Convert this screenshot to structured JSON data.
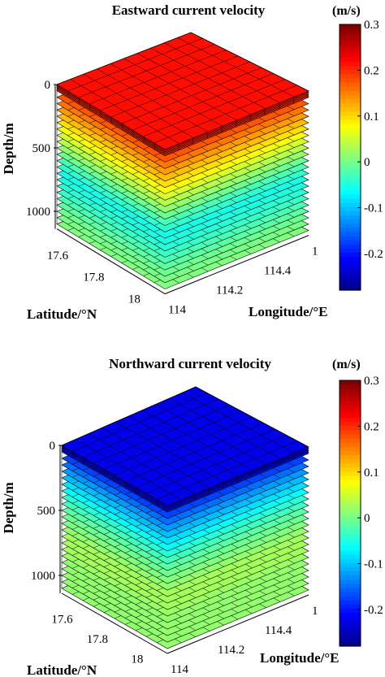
{
  "chart_data": [
    {
      "type": "3d-slice",
      "title": "Eastward current velocity",
      "xlabel": "Longitude/°E",
      "ylabel": "Latitude/°N",
      "zlabel": "Depth/m",
      "x_ticks": [
        "114",
        "114.2",
        "114.4",
        "1"
      ],
      "y_ticks": [
        "17.6",
        "17.8",
        "18"
      ],
      "z_ticks": [
        "0",
        "500",
        "1000"
      ],
      "x_range": [
        114,
        114.6
      ],
      "y_range": [
        17.5,
        18.1
      ],
      "z_range": [
        0,
        1100
      ],
      "colorbar": {
        "label": "(m/s)",
        "range": [
          -0.28,
          0.3
        ],
        "ticks": [
          "0.3",
          "0.2",
          "0.1",
          "0",
          "-0.1",
          "-0.2"
        ],
        "colormap": "jet"
      },
      "profile": {
        "depth": [
          0,
          100,
          200,
          300,
          400,
          500,
          600,
          700,
          800,
          900,
          1000,
          1100
        ],
        "value": [
          0.22,
          0.18,
          0.14,
          0.1,
          0.06,
          0.02,
          -0.02,
          -0.05,
          -0.04,
          -0.02,
          0.0,
          0.01
        ]
      }
    },
    {
      "type": "3d-slice",
      "title": "Northward current velocity",
      "xlabel": "Longitude/°E",
      "ylabel": "Latitude/°N",
      "zlabel": "Depth/m",
      "x_ticks": [
        "114",
        "114.2",
        "114.4",
        "1"
      ],
      "y_ticks": [
        "17.6",
        "17.8",
        "18"
      ],
      "z_ticks": [
        "0",
        "500",
        "1000"
      ],
      "x_range": [
        114,
        114.6
      ],
      "y_range": [
        17.5,
        18.1
      ],
      "z_range": [
        0,
        1100
      ],
      "colorbar": {
        "label": "(m/s)",
        "range": [
          -0.28,
          0.3
        ],
        "ticks": [
          "0.3",
          "0.2",
          "0.1",
          "0",
          "-0.1",
          "-0.2"
        ],
        "colormap": "jet"
      },
      "profile": {
        "depth": [
          0,
          100,
          200,
          300,
          400,
          500,
          600,
          700,
          800,
          900,
          1000,
          1100
        ],
        "value": [
          -0.22,
          -0.17,
          -0.12,
          -0.08,
          -0.04,
          -0.01,
          0.01,
          0.03,
          0.03,
          0.02,
          0.02,
          0.02
        ]
      }
    }
  ]
}
